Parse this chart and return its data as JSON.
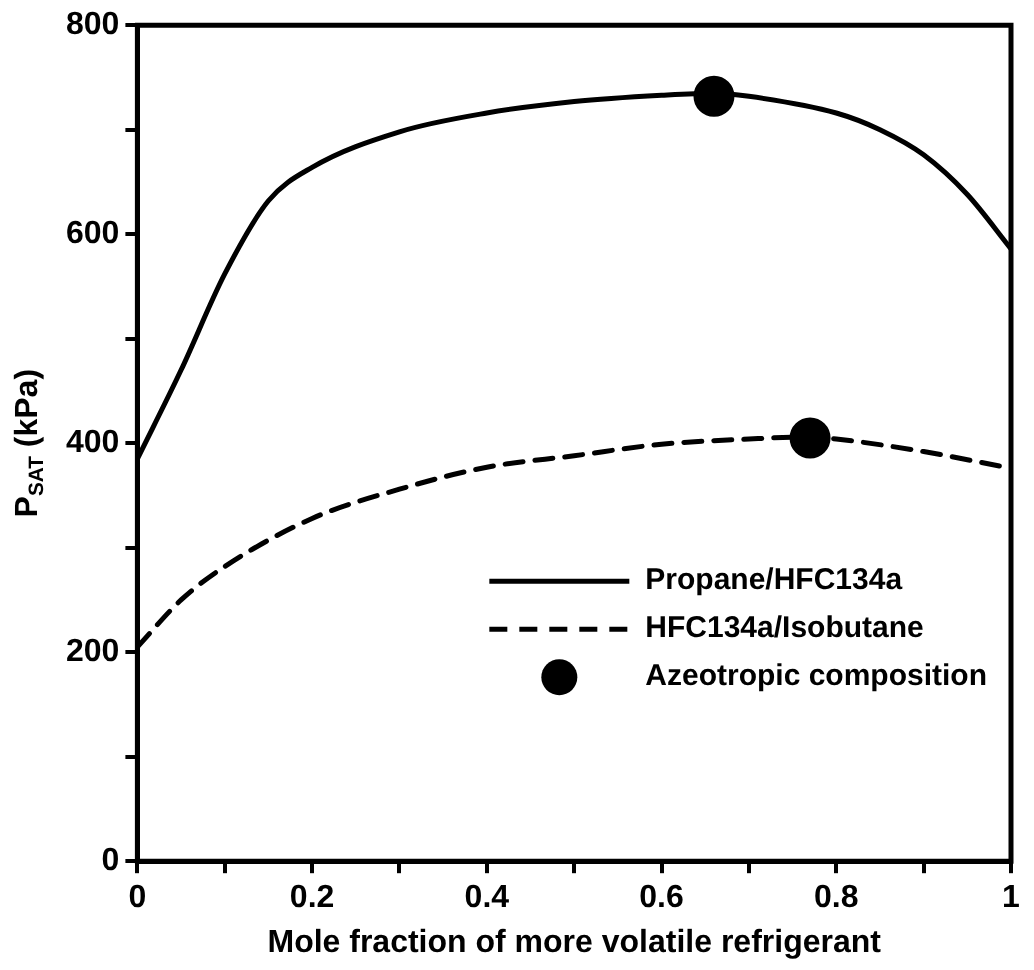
{
  "chart_data": {
    "type": "line",
    "xlabel": "Mole fraction of more volatile refrigerant",
    "ylabel": "P$_{SAT}$ (kPa)",
    "xlim": [
      0,
      1
    ],
    "ylim": [
      0,
      800
    ],
    "xticks": [
      0,
      {
        "value": 0.1,
        "label": null
      },
      0.2,
      {
        "value": 0.3,
        "label": null
      },
      0.4,
      {
        "value": 0.5,
        "label": null
      },
      0.6,
      {
        "value": 0.7,
        "label": null
      },
      0.8,
      {
        "value": 0.9,
        "label": null
      },
      1
    ],
    "yticks": [
      0,
      {
        "value": 100,
        "label": null
      },
      200,
      {
        "value": 300,
        "label": null
      },
      400,
      {
        "value": 500,
        "label": null
      },
      600,
      {
        "value": 700,
        "label": null
      },
      800
    ],
    "grid": false,
    "legend": "bottom right",
    "series": [
      {
        "name": "Propane/HFC134a",
        "color": "#000000",
        "line_style": "solid",
        "marker": "none",
        "x": [
          0,
          0.05,
          0.1,
          0.15,
          0.2,
          0.3,
          0.4,
          0.5,
          0.6,
          0.66,
          0.7,
          0.8,
          0.85,
          0.9,
          0.95,
          1
        ],
        "values": [
          385,
          470,
          562,
          632,
          664,
          698,
          716,
          727,
          733,
          735,
          732,
          716,
          700,
          676,
          638,
          586
        ]
      },
      {
        "name": "HFC134a/Isobutane",
        "color": "#000000",
        "line_style": "dashed",
        "marker": "none",
        "x": [
          0,
          0.05,
          0.1,
          0.2,
          0.3,
          0.4,
          0.5,
          0.6,
          0.7,
          0.77,
          0.8,
          0.9,
          1
        ],
        "values": [
          205,
          250,
          282,
          328,
          356,
          377,
          388,
          399,
          404,
          406,
          404,
          392,
          376
        ]
      },
      {
        "name": "Azeotropic composition",
        "type": "scatter",
        "color": "#000000",
        "marker": "circle",
        "x": [
          0.66,
          0.77
        ],
        "values": [
          732,
          405
        ]
      }
    ]
  }
}
